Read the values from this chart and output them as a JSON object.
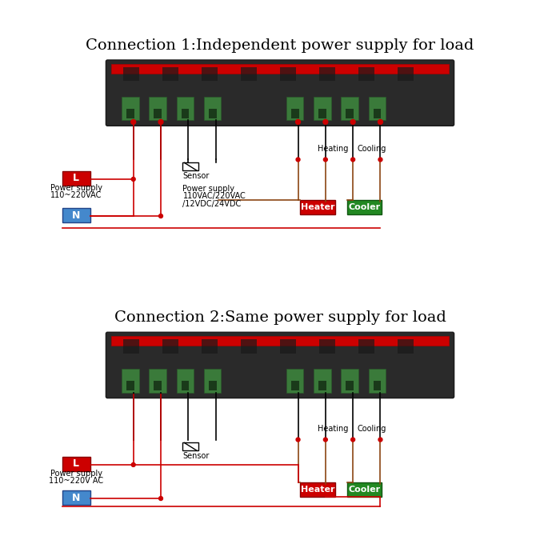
{
  "title1": "Connection 1:Independent power supply for load",
  "title2": "Connection 2:Same power supply for load",
  "title_fontsize": 14,
  "bg_color": "#ffffff",
  "label_L": "L",
  "label_N": "N",
  "label_heater": "Heater",
  "label_cooler": "Cooler",
  "label_sensor": "Sensor",
  "label_heating": "Heating",
  "label_cooling": "Cooling",
  "label_ps1_line1": "Power supply",
  "label_ps1_line2": "110~220VAC",
  "label_ps2_line1": "Power supply",
  "label_ps2_line2": "110VAC/220VAC",
  "label_ps2_line3": "/12VDC/24VDC",
  "label_ps3_line1": "Power supply",
  "label_ps3_line2": "110~220V AC",
  "color_red": "#cc0000",
  "color_blue": "#4488cc",
  "color_green": "#228822",
  "color_black": "#000000",
  "color_wire_red": "#cc0000",
  "color_wire_brown": "#8B4513",
  "color_text": "#000000"
}
